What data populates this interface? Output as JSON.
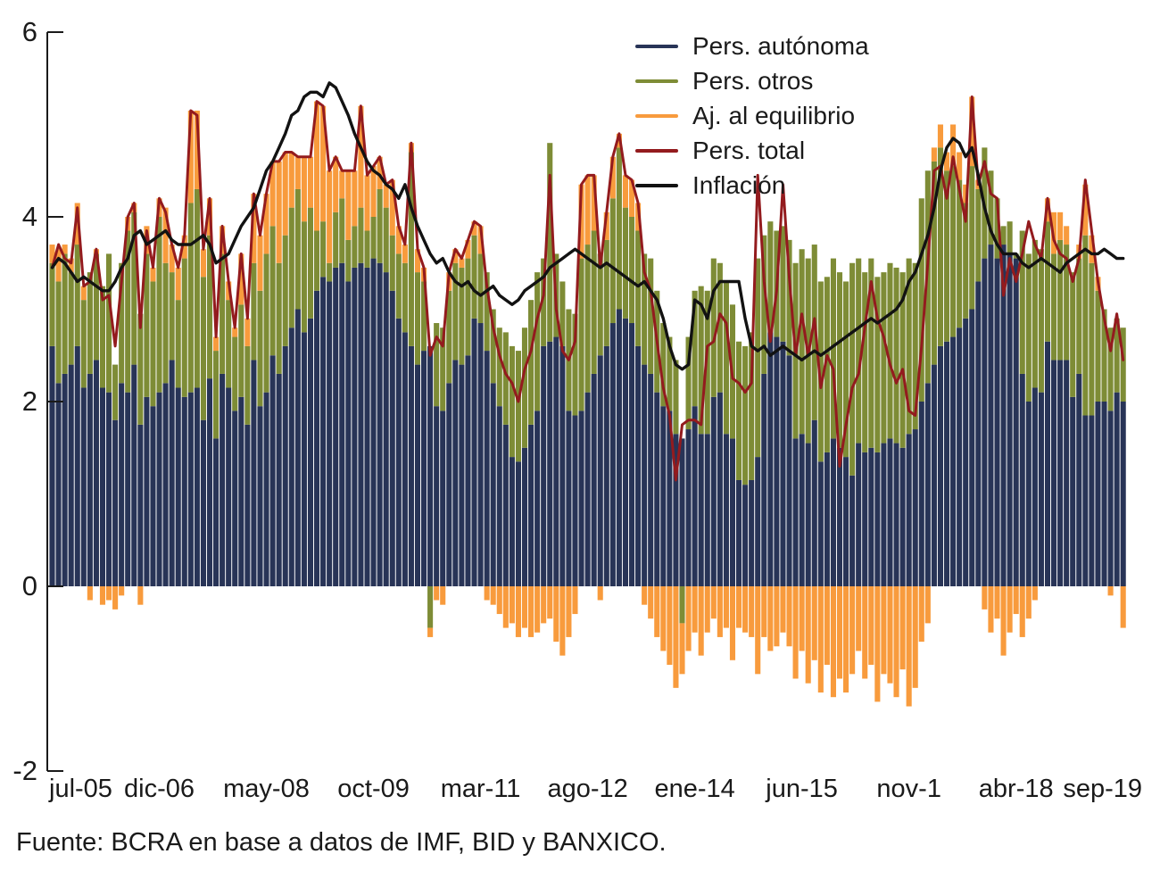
{
  "legend": {
    "items": [
      {
        "label": "Pers. autónoma",
        "color": "#283457"
      },
      {
        "label": "Pers. otros",
        "color": "#7e8c36"
      },
      {
        "label": "Aj. al equilibrio",
        "color": "#f89b3d"
      },
      {
        "label": "Pers. total",
        "color": "#931b1e"
      },
      {
        "label": "Inflación",
        "color": "#121212"
      }
    ]
  },
  "footer": {
    "text": "Fuente: BCRA en base a datos de IMF, BID y BANXICO."
  },
  "chart_data": {
    "type": "combo: stacked-bar + line",
    "x_unit": "month",
    "x_start": "jul-05",
    "x_end": "sep-19",
    "n_months": 171,
    "ylim": [
      -2,
      6
    ],
    "y_ticks": [
      -2,
      0,
      2,
      4,
      6
    ],
    "x_tick_labels": [
      "jul-05",
      "dic-06",
      "may-08",
      "oct-09",
      "mar-11",
      "ago-12",
      "ene-14",
      "jun-15",
      "nov-1",
      "abr-18",
      "sep-19"
    ],
    "x_tick_month_indices": [
      0,
      17,
      34,
      51,
      68,
      85,
      102,
      119,
      136,
      153,
      170
    ],
    "grid": false,
    "legend_position": "top-center",
    "colors": {
      "bar_gap": "#ffffff",
      "axis": "#1a1a1a"
    },
    "series": [
      {
        "name": "autonoma",
        "label": "Pers. autónoma",
        "type": "bar-stacked",
        "color": "#283457",
        "values": [
          2.6,
          2.2,
          2.3,
          2.4,
          2.6,
          2.15,
          2.3,
          2.45,
          2.15,
          2.1,
          1.8,
          2.2,
          2.1,
          2.4,
          1.75,
          2.05,
          1.95,
          2.1,
          2.2,
          2.45,
          2.15,
          2.05,
          2.1,
          2.15,
          1.8,
          2.25,
          1.6,
          2.3,
          2.15,
          1.9,
          2.05,
          1.75,
          2.45,
          1.95,
          2.1,
          2.5,
          2.3,
          2.6,
          2.8,
          3.0,
          2.75,
          2.9,
          3.2,
          3.35,
          3.3,
          3.45,
          3.5,
          3.3,
          3.45,
          3.5,
          3.45,
          3.55,
          3.5,
          3.4,
          3.2,
          2.9,
          2.75,
          2.6,
          2.4,
          2.55,
          2.6,
          1.95,
          1.9,
          2.2,
          2.45,
          2.4,
          2.5,
          2.9,
          2.85,
          2.55,
          2.2,
          1.95,
          1.75,
          1.4,
          1.35,
          1.5,
          1.75,
          1.9,
          2.6,
          2.65,
          2.7,
          2.6,
          1.9,
          1.85,
          1.9,
          2.1,
          2.3,
          2.5,
          2.6,
          2.85,
          3.0,
          2.9,
          2.85,
          2.6,
          2.4,
          2.3,
          2.1,
          1.95,
          1.9,
          1.65,
          1.6,
          1.7,
          1.95,
          1.65,
          1.65,
          2.05,
          2.1,
          1.65,
          1.6,
          1.15,
          1.1,
          1.15,
          1.4,
          2.3,
          2.75,
          2.7,
          2.65,
          2.5,
          1.6,
          1.65,
          1.55,
          1.8,
          1.35,
          1.45,
          1.6,
          1.5,
          1.4,
          1.2,
          1.55,
          1.45,
          1.5,
          1.45,
          1.55,
          1.6,
          1.55,
          1.5,
          1.65,
          1.7,
          2.0,
          2.2,
          2.4,
          2.6,
          2.65,
          2.7,
          2.8,
          2.9,
          3.0,
          3.3,
          3.55,
          3.7,
          3.55,
          3.7,
          3.6,
          3.55,
          2.3,
          2.0,
          2.15,
          2.1,
          2.65,
          2.45,
          2.45,
          2.45,
          2.05,
          2.3,
          1.85,
          1.85,
          2.0,
          2.0,
          1.9,
          2.1,
          2.0
        ]
      },
      {
        "name": "otros",
        "label": "Pers. otros",
        "type": "bar-stacked",
        "color": "#7e8c36",
        "values": [
          0.9,
          1.1,
          1.3,
          1.0,
          1.1,
          0.95,
          1.1,
          1.15,
          1.1,
          1.5,
          0.6,
          1.3,
          1.75,
          1.65,
          1.2,
          1.55,
          1.35,
          1.9,
          1.3,
          0.95,
          0.95,
          1.5,
          2.05,
          2.15,
          1.55,
          1.55,
          0.95,
          1.3,
          0.95,
          0.8,
          1.0,
          0.85,
          1.05,
          1.25,
          1.5,
          1.4,
          1.2,
          1.2,
          1.3,
          1.3,
          1.2,
          1.2,
          0.65,
          0.6,
          0.2,
          0.6,
          0.7,
          0.45,
          0.45,
          0.6,
          0.4,
          0.45,
          0.8,
          0.7,
          0.6,
          0.7,
          0.75,
          2.1,
          1.0,
          0.75,
          -0.45,
          0.9,
          0.9,
          1.0,
          1.05,
          1.05,
          1.05,
          0.9,
          0.75,
          0.85,
          0.8,
          0.85,
          1.0,
          1.2,
          1.2,
          1.3,
          1.35,
          1.5,
          0.95,
          2.15,
          0.9,
          0.7,
          1.1,
          1.1,
          1.65,
          1.6,
          1.55,
          1.1,
          1.15,
          1.35,
          1.75,
          1.2,
          1.15,
          1.25,
          1.2,
          1.25,
          1.1,
          0.9,
          0.8,
          0.8,
          -0.4,
          1.0,
          1.25,
          1.6,
          1.55,
          1.5,
          1.4,
          1.65,
          1.45,
          1.5,
          1.5,
          1.6,
          2.15,
          1.5,
          1.2,
          1.15,
          1.25,
          1.25,
          1.9,
          2.0,
          2.0,
          1.9,
          1.95,
          1.9,
          1.95,
          1.9,
          1.9,
          2.3,
          2.0,
          1.95,
          2.05,
          1.9,
          1.85,
          1.9,
          1.9,
          1.9,
          1.9,
          1.8,
          2.2,
          2.3,
          2.2,
          2.15,
          1.85,
          1.85,
          1.6,
          1.25,
          1.55,
          1.0,
          1.2,
          0.8,
          0.65,
          0.2,
          0.35,
          0.05,
          1.55,
          1.6,
          1.6,
          1.55,
          1.3,
          1.15,
          1.3,
          1.25,
          1.35,
          1.25,
          1.95,
          1.65,
          1.2,
          1.0,
          0.9,
          0.8,
          0.8
        ]
      },
      {
        "name": "equilibrio",
        "label": "Aj. al equilibrio",
        "type": "bar-stacked",
        "color": "#f89b3d",
        "values": [
          0.2,
          0.35,
          0.1,
          0.15,
          0.45,
          0.15,
          -0.15,
          0.05,
          -0.2,
          -0.15,
          -0.25,
          -0.1,
          0.15,
          0.1,
          -0.2,
          0.3,
          0.15,
          0.2,
          0.6,
          0.3,
          0.35,
          0.25,
          1.0,
          0.85,
          0.3,
          0.4,
          0.15,
          0.3,
          0.2,
          0.1,
          0.55,
          0.3,
          0.75,
          0.6,
          0.65,
          0.7,
          1.1,
          0.9,
          0.6,
          0.35,
          0.7,
          0.55,
          1.4,
          1.25,
          1.0,
          0.6,
          0.3,
          0.75,
          0.6,
          1.1,
          0.6,
          0.55,
          0.35,
          0.25,
          0.6,
          0.3,
          0.2,
          0.1,
          0.25,
          0.15,
          -0.1,
          -0.15,
          -0.2,
          0.2,
          0.15,
          0.1,
          0.2,
          0.15,
          0.3,
          -0.15,
          -0.2,
          -0.3,
          -0.45,
          -0.4,
          -0.55,
          -0.45,
          -0.55,
          -0.5,
          -0.4,
          -0.35,
          -0.6,
          -0.75,
          -0.55,
          -0.3,
          0.8,
          0.75,
          0.6,
          -0.15,
          0.3,
          0.45,
          0.15,
          0.35,
          0.4,
          0.3,
          -0.2,
          -0.35,
          -0.55,
          -0.7,
          -0.85,
          -1.1,
          -0.55,
          -0.7,
          -0.5,
          -0.75,
          -0.5,
          -0.35,
          -0.55,
          -0.45,
          -0.8,
          -0.45,
          -0.5,
          -0.55,
          -0.95,
          -0.55,
          -0.7,
          -0.65,
          -0.5,
          -0.65,
          -1.0,
          -0.7,
          -1.05,
          -0.8,
          -1.15,
          -0.85,
          -1.2,
          -1.0,
          -1.15,
          -0.95,
          -0.7,
          -1.0,
          -0.85,
          -1.25,
          -0.95,
          -1.05,
          -1.2,
          -0.9,
          -1.3,
          -1.1,
          -0.6,
          -0.4,
          0.15,
          0.25,
          0.2,
          0.45,
          0.3,
          0.2,
          0.75,
          0.1,
          -0.25,
          -0.5,
          -0.35,
          -0.75,
          -0.5,
          -0.3,
          -0.55,
          -0.35,
          -0.15,
          0.0,
          0.25,
          0.45,
          0.3,
          0.2,
          0.0,
          0.15,
          0.55,
          0.3,
          0.15,
          0.0,
          -0.1,
          0.0,
          -0.45
        ]
      },
      {
        "name": "total",
        "label": "Pers. total",
        "type": "line",
        "color": "#931b1e",
        "values": [
          3.45,
          3.7,
          3.55,
          3.5,
          4.1,
          3.25,
          3.3,
          3.65,
          3.1,
          3.15,
          2.6,
          3.3,
          4.0,
          4.15,
          2.8,
          3.85,
          3.45,
          4.2,
          4.05,
          3.7,
          3.45,
          3.8,
          5.15,
          5.1,
          3.65,
          4.2,
          2.7,
          3.9,
          3.3,
          2.8,
          3.6,
          2.9,
          4.25,
          3.8,
          4.25,
          4.6,
          4.6,
          4.7,
          4.7,
          4.65,
          4.65,
          4.65,
          5.25,
          5.2,
          4.5,
          4.65,
          4.5,
          4.5,
          4.5,
          5.2,
          4.45,
          4.55,
          4.65,
          4.35,
          4.4,
          3.9,
          3.7,
          4.8,
          3.65,
          3.45,
          2.5,
          2.7,
          2.6,
          3.4,
          3.65,
          3.55,
          3.75,
          3.95,
          3.9,
          3.25,
          2.8,
          2.5,
          2.3,
          2.2,
          2.0,
          2.35,
          2.55,
          2.9,
          3.15,
          4.45,
          3.0,
          2.55,
          2.45,
          2.65,
          4.35,
          4.45,
          4.45,
          3.45,
          4.05,
          4.65,
          4.9,
          4.45,
          4.4,
          4.15,
          3.4,
          3.2,
          2.65,
          2.15,
          1.85,
          1.15,
          1.75,
          1.8,
          1.8,
          1.75,
          2.6,
          2.65,
          2.95,
          2.85,
          2.25,
          2.2,
          2.1,
          2.2,
          4.45,
          3.3,
          2.65,
          3.2,
          4.35,
          3.35,
          2.5,
          2.95,
          2.5,
          2.9,
          2.15,
          2.5,
          2.35,
          1.3,
          1.75,
          2.15,
          2.3,
          2.8,
          3.3,
          2.9,
          2.7,
          2.4,
          2.2,
          2.35,
          1.9,
          1.85,
          2.6,
          3.5,
          4.5,
          4.55,
          4.2,
          4.65,
          4.3,
          3.95,
          5.3,
          4.35,
          4.6,
          4.25,
          4.2,
          3.15,
          3.55,
          3.3,
          3.6,
          3.95,
          3.7,
          3.55,
          4.2,
          3.75,
          3.6,
          3.55,
          3.3,
          3.55,
          4.4,
          3.85,
          3.3,
          2.9,
          2.55,
          2.95,
          2.45
        ]
      },
      {
        "name": "inflacion",
        "label": "Inflación",
        "type": "line",
        "color": "#121212",
        "values": [
          3.45,
          3.55,
          3.5,
          3.4,
          3.3,
          3.35,
          3.3,
          3.25,
          3.2,
          3.2,
          3.3,
          3.45,
          3.55,
          3.8,
          3.85,
          3.7,
          3.75,
          3.8,
          3.85,
          3.75,
          3.7,
          3.7,
          3.7,
          3.75,
          3.8,
          3.7,
          3.5,
          3.55,
          3.6,
          3.75,
          3.9,
          4.0,
          4.1,
          4.3,
          4.5,
          4.6,
          4.75,
          4.9,
          5.1,
          5.15,
          5.3,
          5.35,
          5.35,
          5.3,
          5.45,
          5.4,
          5.25,
          5.1,
          4.9,
          4.75,
          4.6,
          4.5,
          4.45,
          4.35,
          4.3,
          4.2,
          4.35,
          4.1,
          3.9,
          3.75,
          3.6,
          3.5,
          3.55,
          3.4,
          3.3,
          3.25,
          3.3,
          3.2,
          3.15,
          3.2,
          3.25,
          3.15,
          3.1,
          3.05,
          3.1,
          3.2,
          3.25,
          3.3,
          3.35,
          3.45,
          3.5,
          3.55,
          3.6,
          3.65,
          3.6,
          3.55,
          3.5,
          3.45,
          3.5,
          3.45,
          3.4,
          3.35,
          3.3,
          3.25,
          3.3,
          3.2,
          3.1,
          2.9,
          2.6,
          2.4,
          2.35,
          2.4,
          3.1,
          3.05,
          2.9,
          3.2,
          3.3,
          3.3,
          3.3,
          3.3,
          2.9,
          2.6,
          2.55,
          2.6,
          2.5,
          2.55,
          2.6,
          2.55,
          2.5,
          2.45,
          2.5,
          2.55,
          2.5,
          2.55,
          2.6,
          2.65,
          2.7,
          2.75,
          2.8,
          2.85,
          2.9,
          2.85,
          2.9,
          2.95,
          3.0,
          3.1,
          3.3,
          3.4,
          3.6,
          3.8,
          4.1,
          4.5,
          4.75,
          4.85,
          4.8,
          4.65,
          4.75,
          4.45,
          4.1,
          3.85,
          3.7,
          3.6,
          3.6,
          3.6,
          3.5,
          3.45,
          3.5,
          3.55,
          3.5,
          3.45,
          3.4,
          3.5,
          3.55,
          3.6,
          3.65,
          3.6,
          3.6,
          3.65,
          3.6,
          3.55,
          3.55
        ]
      }
    ]
  }
}
